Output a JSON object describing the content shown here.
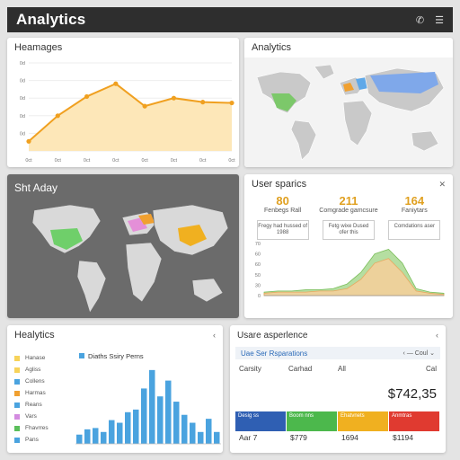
{
  "header": {
    "title": "Analytics",
    "icons": [
      "phone-icon",
      "menu-icon"
    ]
  },
  "card_line": {
    "title": "Heamages",
    "chart_data": {
      "type": "area",
      "x": [
        "0ct",
        "0ct",
        "0ct",
        "0ct",
        "0ct",
        "0ct",
        "0ct",
        "0ct"
      ],
      "y_ticks": [
        "",
        "0d",
        "0d",
        "0d",
        "0d",
        "0d"
      ],
      "values": [
        0.6,
        2.2,
        3.4,
        4.2,
        2.8,
        3.3,
        3.05,
        3.0
      ],
      "ylim": [
        0,
        5.5
      ],
      "colors": {
        "line": "#f0a020",
        "fill": "#fde7b8"
      }
    }
  },
  "card_map_top": {
    "title": "Analytics"
  },
  "card_map_mid": {
    "title": "Sht Aday"
  },
  "card_stats": {
    "title": "User sparics",
    "stats": [
      {
        "value": "80",
        "label": "Fenbegs Rall"
      },
      {
        "value": "211",
        "label": "Comgrade gamcsure"
      },
      {
        "value": "164",
        "label": "Faniytars"
      }
    ],
    "boxes": [
      "Fregy had hussed of 1988",
      "Fetg wixe Dused ofer this",
      "Comdations aser"
    ],
    "chart_data": {
      "type": "area",
      "y_ticks": [
        "70",
        "60",
        "60",
        "50",
        "30",
        "0"
      ],
      "series": [
        {
          "values": [
            0.3,
            0.4,
            0.4,
            0.5,
            0.5,
            0.6,
            1.0,
            2.0,
            3.6,
            4.0,
            2.8,
            0.6,
            0.3,
            0.2
          ]
        },
        {
          "values": [
            0.2,
            0.3,
            0.3,
            0.3,
            0.4,
            0.4,
            0.6,
            1.4,
            2.8,
            3.2,
            2.0,
            0.4,
            0.2,
            0.1
          ]
        }
      ],
      "ylim": [
        0,
        4.5
      ],
      "colors": {
        "a": "#a8d890",
        "b": "#f7cf9a"
      }
    }
  },
  "card_bars": {
    "title": "Healytics",
    "chart_title": "Diaths Ssiry Perns",
    "legend": [
      {
        "label": "Hanase",
        "color": "#f7d35a"
      },
      {
        "label": "Agliss",
        "color": "#f7d35a"
      },
      {
        "label": "Collens",
        "color": "#4aa3df"
      },
      {
        "label": "Harmas",
        "color": "#f0a030"
      },
      {
        "label": "Reans",
        "color": "#4aa3df"
      },
      {
        "label": "Vars",
        "color": "#d38be0"
      },
      {
        "label": "Fhavrres",
        "color": "#5bbf5b"
      },
      {
        "label": "Pans",
        "color": "#4aa3df"
      }
    ],
    "chart_data": {
      "type": "bar",
      "values": [
        0.7,
        1.1,
        1.2,
        0.9,
        1.8,
        1.6,
        2.4,
        2.6,
        4.2,
        5.6,
        3.6,
        4.8,
        3.2,
        2.2,
        1.6,
        0.9,
        1.9,
        0.9
      ],
      "ylim": [
        0,
        6
      ],
      "color": "#4aa3df"
    }
  },
  "card_usage": {
    "title": "Usare asperlence",
    "subbar": {
      "title": "Uae Ser Rsparations",
      "right": "Coul"
    },
    "cols": [
      "Carsity",
      "Carhad",
      "All",
      "Cal"
    ],
    "amount": "$742,35",
    "tiles": [
      {
        "label": "Desig ss",
        "color": "#2f5fb3"
      },
      {
        "label": "Boom nns",
        "color": "#4cb84c"
      },
      {
        "label": "Ehatvnets",
        "color": "#f0b020"
      },
      {
        "label": "Anmtras",
        "color": "#e03a30"
      }
    ],
    "values": [
      "Aar 7",
      "$779",
      "1694",
      "$1194"
    ]
  }
}
